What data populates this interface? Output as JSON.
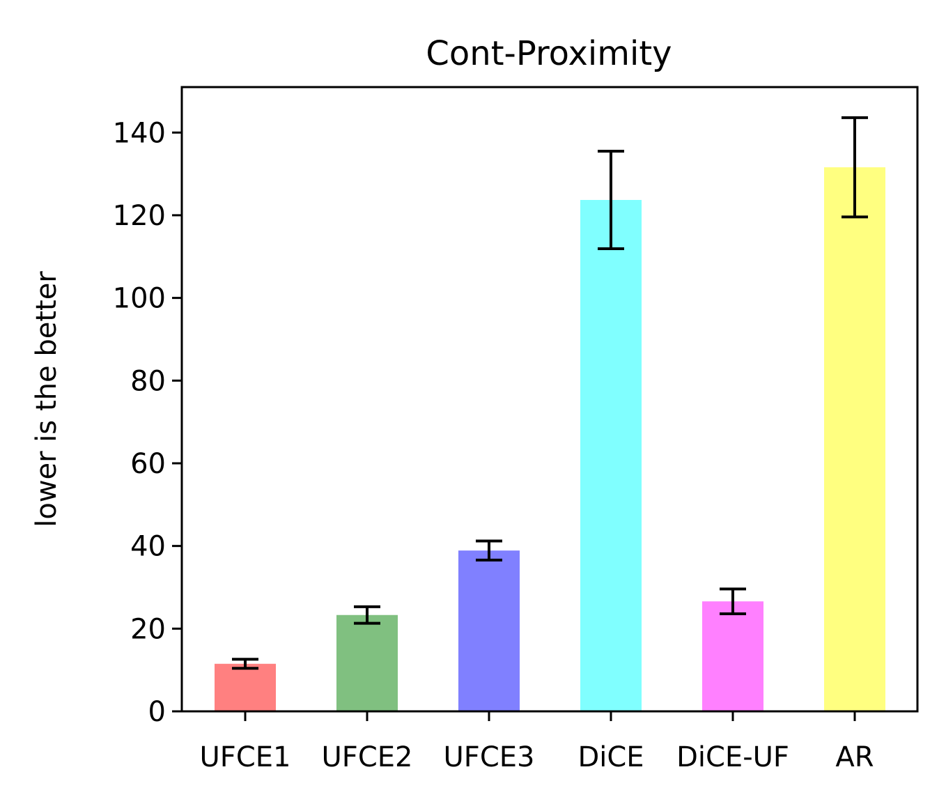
{
  "chart_data": {
    "type": "bar",
    "title": "Cont-Proximity",
    "xlabel": "",
    "ylabel": "lower is the better",
    "categories": [
      "UFCE1",
      "UFCE2",
      "UFCE3",
      "DiCE",
      "DiCE-UF",
      "AR"
    ],
    "values": [
      11.5,
      23.3,
      38.9,
      123.7,
      26.6,
      131.6
    ],
    "errors": [
      1.1,
      2.0,
      2.3,
      11.8,
      3.0,
      12.0
    ],
    "colors": [
      "#ff8080",
      "#80c080",
      "#8080ff",
      "#80ffff",
      "#ff80ff",
      "#ffff80"
    ],
    "ylim": [
      0,
      151
    ],
    "yticks": [
      0,
      20,
      40,
      60,
      80,
      100,
      120,
      140
    ],
    "grid": false,
    "legend": "none"
  }
}
